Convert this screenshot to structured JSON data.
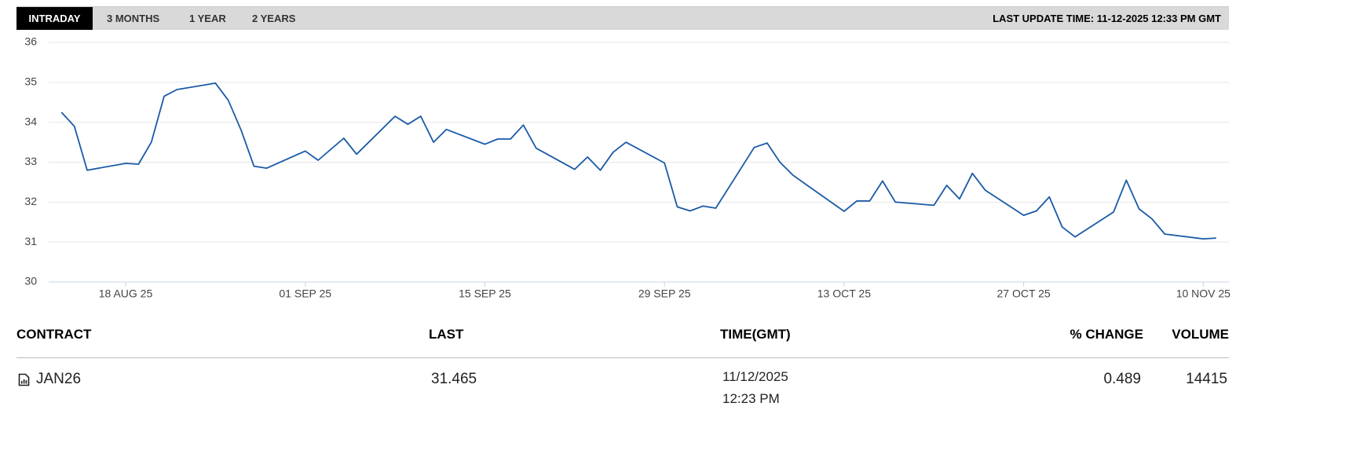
{
  "tabs": {
    "items": [
      "INTRADAY",
      "3 MONTHS",
      "1 YEAR",
      "2 YEARS"
    ],
    "active": 0
  },
  "last_update": "LAST UPDATE TIME: 11-12-2025 12:33 PM GMT",
  "chart_data": {
    "type": "line",
    "color": "#1a5aa6",
    "grid": true,
    "x": [
      "2025-08-13",
      "2025-08-14",
      "2025-08-15",
      "2025-08-18",
      "2025-08-19",
      "2025-08-20",
      "2025-08-21",
      "2025-08-22",
      "2025-08-25",
      "2025-08-26",
      "2025-08-27",
      "2025-08-28",
      "2025-08-29",
      "2025-09-01",
      "2025-09-02",
      "2025-09-04",
      "2025-09-05",
      "2025-09-08",
      "2025-09-09",
      "2025-09-10",
      "2025-09-11",
      "2025-09-12",
      "2025-09-15",
      "2025-09-16",
      "2025-09-17",
      "2025-09-18",
      "2025-09-19",
      "2025-09-22",
      "2025-09-23",
      "2025-09-24",
      "2025-09-25",
      "2025-09-26",
      "2025-09-29",
      "2025-09-30",
      "2025-10-01",
      "2025-10-02",
      "2025-10-03",
      "2025-10-06",
      "2025-10-07",
      "2025-10-08",
      "2025-10-09",
      "2025-10-10",
      "2025-10-13",
      "2025-10-14",
      "2025-10-15",
      "2025-10-16",
      "2025-10-17",
      "2025-10-20",
      "2025-10-21",
      "2025-10-22",
      "2025-10-23",
      "2025-10-24",
      "2025-10-27",
      "2025-10-28",
      "2025-10-29",
      "2025-10-30",
      "2025-10-31",
      "2025-11-03",
      "2025-11-04",
      "2025-11-05",
      "2025-11-06",
      "2025-11-07",
      "2025-11-10",
      "2025-11-11"
    ],
    "values": [
      34.25,
      33.9,
      32.8,
      32.97,
      32.95,
      33.5,
      34.65,
      34.82,
      34.98,
      34.55,
      33.8,
      32.9,
      32.85,
      33.28,
      33.05,
      33.6,
      33.2,
      34.15,
      33.95,
      34.15,
      33.5,
      33.82,
      33.45,
      33.58,
      33.58,
      33.93,
      33.35,
      32.82,
      33.13,
      32.8,
      33.25,
      33.5,
      32.98,
      31.88,
      31.78,
      31.9,
      31.85,
      33.37,
      33.48,
      33.0,
      32.68,
      32.45,
      31.77,
      32.03,
      32.03,
      32.53,
      32.0,
      31.92,
      32.42,
      32.08,
      32.72,
      32.3,
      31.67,
      31.78,
      32.13,
      31.38,
      31.13,
      31.75,
      32.55,
      31.83,
      31.58,
      31.2,
      31.08,
      31.1
    ],
    "xlim": [
      "2025-08-12",
      "2025-11-12"
    ],
    "xticks": [
      {
        "value": "2025-08-18",
        "label": "18 AUG 25"
      },
      {
        "value": "2025-09-01",
        "label": "01 SEP 25"
      },
      {
        "value": "2025-09-15",
        "label": "15 SEP 25"
      },
      {
        "value": "2025-09-29",
        "label": "29 SEP 25"
      },
      {
        "value": "2025-10-13",
        "label": "13 OCT 25"
      },
      {
        "value": "2025-10-27",
        "label": "27 OCT 25"
      },
      {
        "value": "2025-11-10",
        "label": "10 NOV 25"
      }
    ],
    "ylim": [
      30,
      36
    ],
    "yticks": [
      30,
      31,
      32,
      33,
      34,
      35,
      36
    ]
  },
  "table": {
    "columns": [
      "CONTRACT",
      "LAST",
      "TIME(GMT)",
      "% CHANGE",
      "VOLUME"
    ],
    "rows": [
      [
        "JAN26",
        31.465,
        {
          "date": "11/12/2025",
          "time": "12:23 PM"
        },
        0.489,
        14415
      ]
    ]
  }
}
